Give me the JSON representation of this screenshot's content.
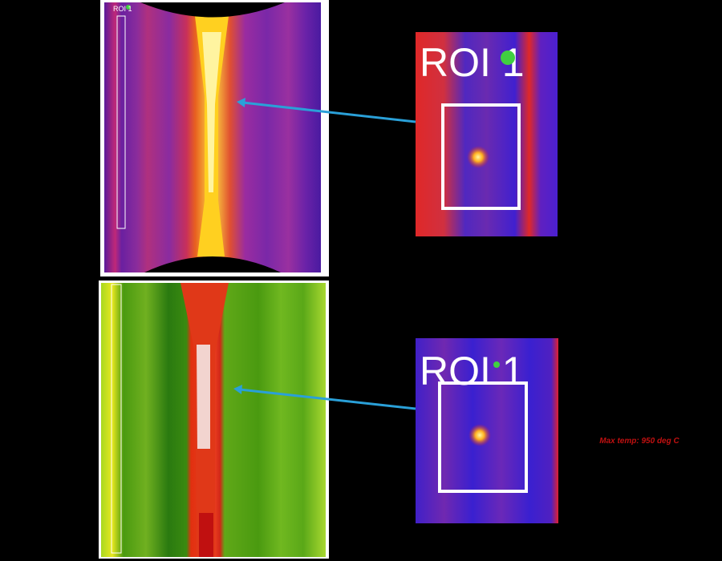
{
  "top_panel": {
    "roi_label": "ROI 1"
  },
  "top_zoom": {
    "roi_label": "ROI 1"
  },
  "bottom_zoom": {
    "roi_label": "ROI 1"
  },
  "annotation": "Max temp: 950 deg C"
}
